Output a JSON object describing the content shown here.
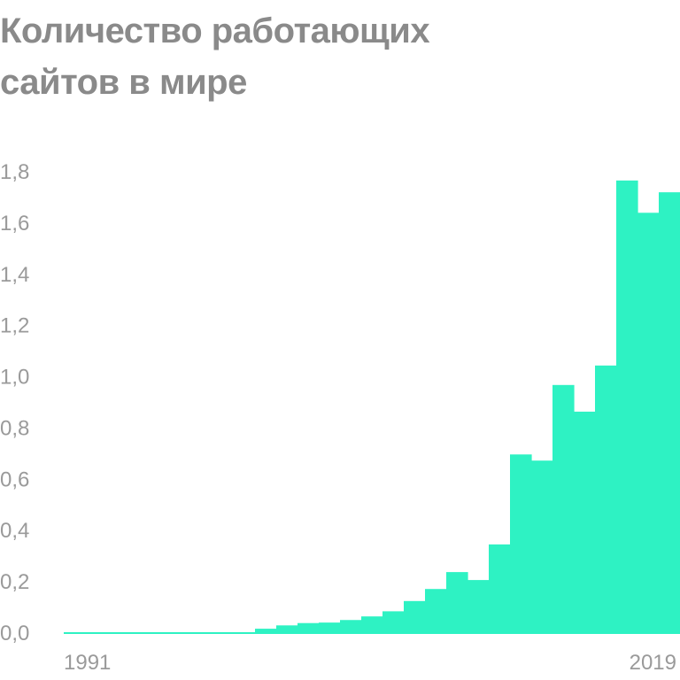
{
  "title_line1": "Количество работающих",
  "title_line2": "сайтов в мире",
  "colors": {
    "bar": "#2ef2c3",
    "text": "#8a8a8a",
    "tick": "#9a9a9a"
  },
  "chart_data": {
    "type": "bar",
    "title": "Количество работающих сайтов в мире",
    "xlabel": "",
    "ylabel": "",
    "ylim": [
      0,
      1.8
    ],
    "yticks": [
      "0,0",
      "0,2",
      "0,4",
      "0,6",
      "0,8",
      "1,0",
      "1,2",
      "1,4",
      "1,6",
      "1,8"
    ],
    "x_tick_labels": [
      {
        "year": 1991,
        "label": "1991"
      },
      {
        "year": 2019,
        "label": "2019"
      }
    ],
    "categories": [
      1991,
      1992,
      1993,
      1994,
      1995,
      1996,
      1997,
      1998,
      1999,
      2000,
      2001,
      2002,
      2003,
      2004,
      2005,
      2006,
      2007,
      2008,
      2009,
      2010,
      2011,
      2012,
      2013,
      2014,
      2015,
      2016,
      2017,
      2018,
      2019
    ],
    "values": [
      0.0,
      0.0,
      0.0,
      0.0,
      0.0,
      0.0,
      0.0,
      0.0,
      0.0,
      0.017,
      0.03,
      0.039,
      0.041,
      0.051,
      0.065,
      0.085,
      0.125,
      0.172,
      0.238,
      0.207,
      0.346,
      0.697,
      0.673,
      0.968,
      0.864,
      1.044,
      1.766,
      1.64,
      1.72
    ]
  }
}
